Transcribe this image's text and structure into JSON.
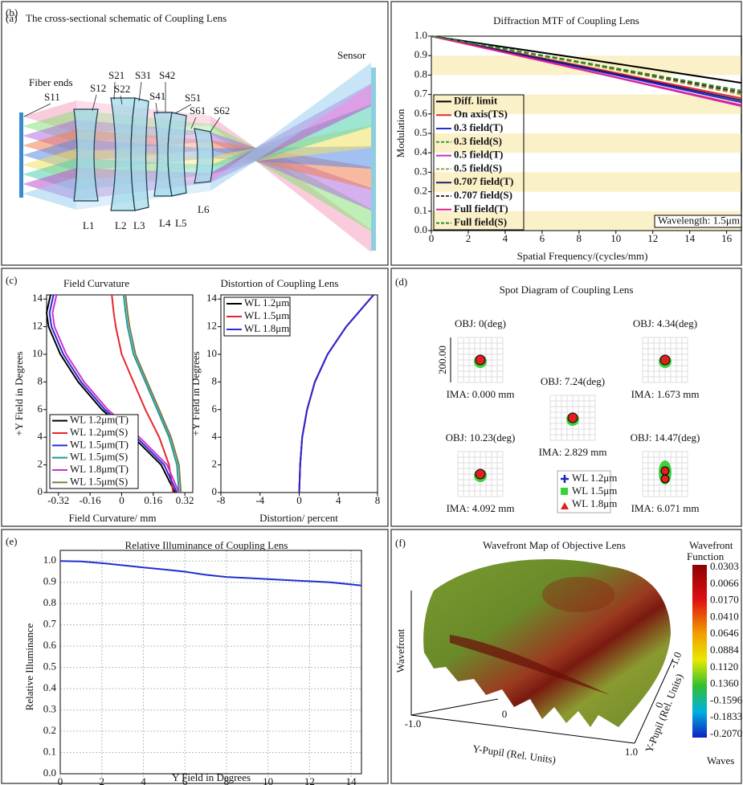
{
  "panel_a": {
    "panel_label": "(a)",
    "title": "The cross-sectional schematic of Coupling Lens",
    "fiber_label": "Fiber ends",
    "sensor_label": "Sensor",
    "surfaces": [
      "S11",
      "S12",
      "S21",
      "S22",
      "S31",
      "S42",
      "S41",
      "S51",
      "S61",
      "S62"
    ],
    "lenses": [
      "L1",
      "L2",
      "L3",
      "L4",
      "L5",
      "L6"
    ]
  },
  "chart_data": [
    {
      "type": "line",
      "panel_label": "(b)",
      "title": "Diffraction MTF of Coupling Lens",
      "x_label": "Spatial Frequency/(cycles/mm)",
      "y_label": "Modulation",
      "x": [
        0,
        8.5,
        16.8
      ],
      "series": [
        {
          "name": "Diff. limit",
          "color": "#000000",
          "style": "solid",
          "values": [
            1.0,
            0.88,
            0.76
          ]
        },
        {
          "name": "On axis(TS)",
          "color": "#e8262a",
          "style": "solid",
          "values": [
            1.0,
            0.84,
            0.68
          ]
        },
        {
          "name": "0.3 field(T)",
          "color": "#2a2ad6",
          "style": "solid",
          "values": [
            1.0,
            0.83,
            0.66
          ]
        },
        {
          "name": "0.3 field(S)",
          "color": "#3a9a3a",
          "style": "dashed",
          "values": [
            1.0,
            0.855,
            0.71
          ]
        },
        {
          "name": "0.5 field(T)",
          "color": "#c030c0",
          "style": "solid",
          "values": [
            1.0,
            0.82,
            0.64
          ]
        },
        {
          "name": "0.5 field(S)",
          "color": "#9a9a3a",
          "style": "dashed",
          "values": [
            1.0,
            0.855,
            0.7
          ]
        },
        {
          "name": "0.707 field(T)",
          "color": "#1a1a6a",
          "style": "solid",
          "values": [
            1.0,
            0.835,
            0.67
          ]
        },
        {
          "name": "0.707 field(S)",
          "color": "#5a2a1a",
          "style": "dashed",
          "values": [
            1.0,
            0.86,
            0.71
          ]
        },
        {
          "name": "Full field(T)",
          "color": "#e02090",
          "style": "solid",
          "values": [
            1.0,
            0.82,
            0.645
          ]
        },
        {
          "name": "Full field(S)",
          "color": "#2a8a2a",
          "style": "dashed",
          "values": [
            1.0,
            0.86,
            0.72
          ]
        }
      ],
      "xlim": [
        0,
        16.8
      ],
      "xticks": [
        0,
        2,
        4,
        6,
        8,
        10,
        12,
        14,
        16
      ],
      "ylim": [
        0,
        1
      ],
      "yticks": [
        {
          "value": 0,
          "label": "0.0"
        },
        0.1,
        0.2,
        0.3,
        0.4,
        0.5,
        0.6,
        0.7,
        0.8,
        0.9,
        {
          "value": 1,
          "label": "1.0"
        }
      ],
      "legend": "lower left",
      "annotation": "Wavelength: 1.5μm",
      "bands": true,
      "grid": false
    },
    {
      "type": "line",
      "panel_label": "(c)",
      "title": "Field Curvature",
      "x_label": "Field Curvature/ mm",
      "y_label": "+Y Field in Degrees",
      "series": [
        {
          "name": "WL 1.2μm(T)",
          "color": "#000000",
          "x": [
            0.27,
            0.2,
            0.06,
            -0.1,
            -0.22,
            -0.31,
            -0.37,
            -0.38,
            -0.36
          ],
          "values": [
            0,
            2,
            4,
            6,
            8,
            10,
            12,
            13,
            14.3
          ]
        },
        {
          "name": "WL 1.2μm(S)",
          "color": "#e8262a",
          "x": [
            0.26,
            0.24,
            0.19,
            0.12,
            0.06,
            0.0,
            -0.03,
            -0.04,
            -0.05
          ],
          "values": [
            0,
            2,
            4,
            6,
            8,
            10,
            12,
            13,
            14.3
          ]
        },
        {
          "name": "WL 1.5μm(T)",
          "color": "#2a2ad6",
          "x": [
            0.28,
            0.215,
            0.075,
            -0.085,
            -0.205,
            -0.295,
            -0.355,
            -0.365,
            -0.345
          ],
          "values": [
            0,
            2,
            4,
            6,
            8,
            10,
            12,
            13,
            14.3
          ]
        },
        {
          "name": "WL 1.5μm(S)",
          "color": "#1a9a9a",
          "x": [
            0.29,
            0.28,
            0.24,
            0.18,
            0.12,
            0.06,
            0.03,
            0.02,
            0.01
          ],
          "values": [
            0,
            2,
            4,
            6,
            8,
            10,
            12,
            13,
            14.3
          ]
        },
        {
          "name": "WL 1.8μm(T)",
          "color": "#d030d0",
          "x": [
            0.29,
            0.23,
            0.09,
            -0.07,
            -0.19,
            -0.28,
            -0.34,
            -0.35,
            -0.33
          ],
          "values": [
            0,
            2,
            4,
            6,
            8,
            10,
            12,
            13,
            14.3
          ]
        },
        {
          "name": "WL 1.5μm(S)",
          "color": "#7a7a4a",
          "x": [
            0.3,
            0.29,
            0.25,
            0.19,
            0.13,
            0.07,
            0.04,
            0.03,
            0.02
          ],
          "values": [
            0,
            2,
            4,
            6,
            8,
            10,
            12,
            13,
            14.3
          ]
        }
      ],
      "xlim": [
        -0.38,
        0.36
      ],
      "xticks": [
        -0.32,
        -0.16,
        0,
        0.16,
        0.32
      ],
      "ylim": [
        0,
        14.3
      ],
      "yticks": [
        0,
        2,
        4,
        6,
        8,
        10,
        12,
        14
      ],
      "legend": "lower left",
      "grid": false
    },
    {
      "type": "line",
      "title": "Distortion of Coupling Lens",
      "x_label": "Distortion/ percent",
      "y_label": "+Y Field in Degrees",
      "series": [
        {
          "name": "WL 1.2μm",
          "color": "#000000",
          "x": [
            0,
            0.1,
            0.3,
            0.8,
            1.6,
            2.9,
            4.8,
            7.6
          ],
          "values": [
            0,
            2,
            4,
            6,
            8,
            10,
            12,
            14.3
          ]
        },
        {
          "name": "WL 1.5μm",
          "color": "#e8262a",
          "x": [
            0,
            0.1,
            0.3,
            0.8,
            1.6,
            2.9,
            4.8,
            7.6
          ],
          "values": [
            0,
            2,
            4,
            6,
            8,
            10,
            12,
            14.3
          ]
        },
        {
          "name": "WL 1.8μm",
          "color": "#2a2ad6",
          "x": [
            0,
            0.1,
            0.3,
            0.8,
            1.6,
            2.9,
            4.8,
            7.6
          ],
          "values": [
            0,
            2,
            4,
            6,
            8,
            10,
            12,
            14.3
          ]
        }
      ],
      "xlim": [
        -8,
        8
      ],
      "xticks": [
        -8,
        -4,
        0,
        4,
        8
      ],
      "ylim": [
        0,
        14.3
      ],
      "yticks": [
        0,
        2,
        4,
        6,
        8,
        10,
        12,
        14
      ],
      "legend": "upper left",
      "grid": false
    },
    {
      "type": "line",
      "panel_label": "(e)",
      "title": "Relative Illuminance of Coupling Lens",
      "x_label": "Y Field in Degrees",
      "y_label": "Relative Illuminance",
      "x": [
        0,
        1,
        2,
        3,
        4,
        5,
        6,
        7,
        8,
        9,
        10,
        11,
        12,
        13,
        14,
        14.5
      ],
      "series": [
        {
          "color": "#1f2fcf",
          "style": "solid",
          "values": [
            1.0,
            0.998,
            0.99,
            0.98,
            0.97,
            0.96,
            0.95,
            0.935,
            0.925,
            0.92,
            0.915,
            0.91,
            0.905,
            0.9,
            0.89,
            0.885
          ]
        }
      ],
      "xlim": [
        0,
        14.5
      ],
      "xticks": [
        0,
        2,
        4,
        6,
        8,
        10,
        12,
        14
      ],
      "ylim": [
        0,
        1.05
      ],
      "yticks": [
        {
          "value": 0,
          "label": "0.0"
        },
        0.1,
        0.2,
        0.3,
        0.4,
        0.5,
        0.6,
        0.7,
        0.8,
        0.9,
        {
          "value": 1,
          "label": "1.0"
        }
      ],
      "grid": true
    }
  ],
  "panel_d": {
    "panel_label": "(d)",
    "title": "Spot Diagram of Coupling Lens",
    "scale_label": "200.00",
    "fields": [
      {
        "obj": "OBJ: 0(deg)",
        "ima": "IMA: 0.000 mm"
      },
      {
        "obj": "OBJ: 4.34(deg)",
        "ima": "IMA: 1.673 mm"
      },
      {
        "obj": "OBJ: 7.24(deg)",
        "ima": "IMA: 2.829 mm"
      },
      {
        "obj": "OBJ: 10.23(deg)",
        "ima": "IMA: 4.092 mm"
      },
      {
        "obj": "OBJ: 14.47(deg)",
        "ima": "IMA: 6.071 mm"
      }
    ],
    "legend": [
      "WL 1.2μm",
      "WL 1.5μm",
      "WL 1.8μm"
    ]
  },
  "panel_f": {
    "panel_label": "(f)",
    "title": "Wavefront Map of Objective Lens",
    "z_label": "Wavefront",
    "x_label": "Y-Pupil (Rel. Units)",
    "y_label": "Y-Pupil (Rel. Units)",
    "x_ticks": [
      "-1.0",
      "0",
      "1.0"
    ],
    "y_ticks": [
      "-1.0",
      "0"
    ],
    "colorbar_title": [
      "Wavefront",
      "Function"
    ],
    "colorbar_labels": [
      "0.0303",
      "0.0066",
      "0.0170",
      "0.0410",
      "0.0646",
      "0.0884",
      "0.1120",
      "0.1360",
      "-0.1596",
      "-0.1833",
      "-0.2070"
    ],
    "colorbar_unit": "Waves"
  }
}
